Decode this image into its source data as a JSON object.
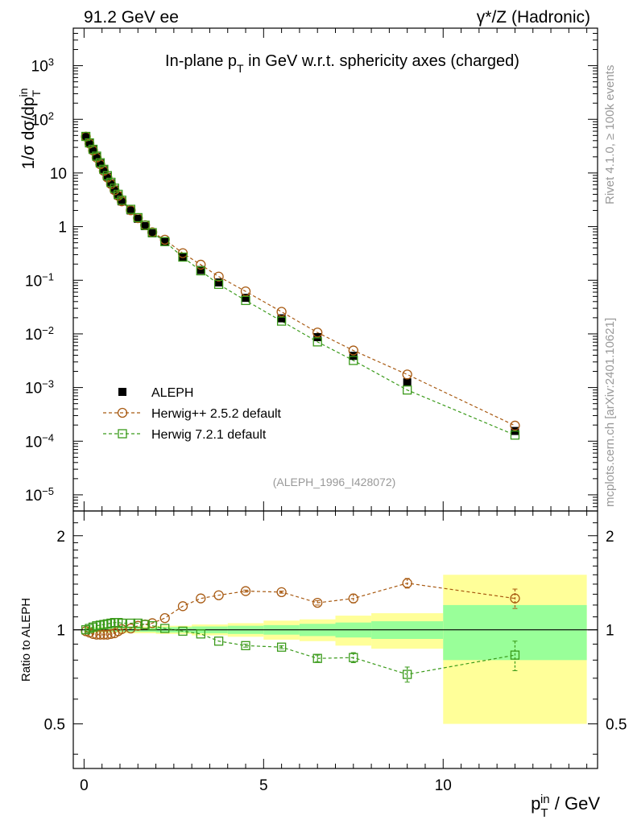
{
  "header": {
    "left": "91.2 GeV ee",
    "right": "γ*/Z (Hadronic)"
  },
  "side_labels": {
    "rivet": "Rivet 4.1.0, ≥ 100k events",
    "mcplots": "mcplots.cern.ch [arXiv:2401.10621]"
  },
  "colors": {
    "data": "#000000",
    "herwigpp": "#a85a12",
    "herwig7": "#3a9a1a",
    "band_inner": "#99ff99",
    "band_outer": "#ffff99"
  },
  "chart_data": [
    {
      "type": "scatter",
      "title": "In-plane p_T in GeV w.r.t. sphericity axes (charged)",
      "ylabel": "1/σ dσ/dp_T^in",
      "xlabel": "p_T^in / GeV",
      "watermark": "(ALEPH_1996_I428072)",
      "yscale": "log",
      "xlim": [
        -0.3,
        14.3
      ],
      "ylim": [
        5e-06,
        5000
      ],
      "x_ticks": [
        0,
        5,
        10
      ],
      "x_tick_labels": [
        "0",
        "5",
        "10"
      ],
      "y_ticks": [
        1e-05,
        0.0001,
        0.001,
        0.01,
        0.1,
        1,
        10,
        100,
        1000
      ],
      "y_tick_labels": [
        {
          "base": "10",
          "exp": "−5"
        },
        {
          "base": "10",
          "exp": "−4"
        },
        {
          "base": "10",
          "exp": "−3"
        },
        {
          "base": "10",
          "exp": "−2"
        },
        {
          "base": "10",
          "exp": "−1"
        },
        {
          "base": "1",
          "exp": ""
        },
        {
          "base": "10",
          "exp": ""
        },
        {
          "base": "10",
          "exp": "2"
        },
        {
          "base": "10",
          "exp": "3"
        }
      ],
      "legend_position": "center-left",
      "x": [
        0.05,
        0.15,
        0.25,
        0.35,
        0.45,
        0.55,
        0.65,
        0.75,
        0.85,
        0.95,
        1.05,
        1.3,
        1.5,
        1.7,
        1.9,
        2.25,
        2.75,
        3.25,
        3.75,
        4.5,
        5.5,
        6.5,
        7.5,
        9.0,
        12.0
      ],
      "series": [
        {
          "name": "ALEPH",
          "key": "data",
          "marker": "square-filled",
          "values": [
            48,
            36,
            27,
            20,
            15,
            11.3,
            8.5,
            6.4,
            4.9,
            3.8,
            2.95,
            2.0,
            1.4,
            1.02,
            0.75,
            0.52,
            0.27,
            0.155,
            0.091,
            0.047,
            0.0195,
            0.0087,
            0.0039,
            0.00125,
            0.000155
          ]
        },
        {
          "name": "Herwig++ 2.5.2 default",
          "key": "herwigpp",
          "marker": "circle-open",
          "values": [
            47.5,
            35.3,
            26.2,
            19.3,
            14.5,
            10.9,
            8.2,
            6.2,
            4.77,
            3.76,
            2.96,
            2.02,
            1.44,
            1.06,
            0.785,
            0.57,
            0.32,
            0.195,
            0.117,
            0.062,
            0.0258,
            0.0106,
            0.0049,
            0.00175,
            0.000195
          ]
        },
        {
          "name": "Herwig 7.2.1 default",
          "key": "herwig7",
          "marker": "square-open",
          "values": [
            48,
            36.4,
            27.6,
            20.6,
            15.5,
            11.7,
            8.9,
            6.7,
            5.2,
            4.0,
            3.1,
            2.1,
            1.47,
            1.06,
            0.77,
            0.525,
            0.27,
            0.15,
            0.084,
            0.042,
            0.0173,
            0.0071,
            0.0032,
            0.0009,
            0.00013
          ]
        }
      ]
    },
    {
      "type": "scatter",
      "ylabel": "Ratio to ALEPH",
      "xlabel": "p_T^in / GeV",
      "yscale": "log",
      "xlim": [
        -0.3,
        14.3
      ],
      "ylim": [
        0.36,
        2.4
      ],
      "y_ticks": [
        0.5,
        1,
        2
      ],
      "y_tick_labels": [
        "0.5",
        "1",
        "2"
      ],
      "reference_line": 1,
      "x": [
        0.05,
        0.15,
        0.25,
        0.35,
        0.45,
        0.55,
        0.65,
        0.75,
        0.85,
        0.95,
        1.05,
        1.3,
        1.5,
        1.7,
        1.9,
        2.25,
        2.75,
        3.25,
        3.75,
        4.5,
        5.5,
        6.5,
        7.5,
        9.0,
        12.0
      ],
      "bands": {
        "edges": [
          0,
          1,
          2,
          3,
          4,
          5,
          6,
          7,
          8,
          10,
          14
        ],
        "inner": [
          0.015,
          0.015,
          0.02,
          0.025,
          0.03,
          0.035,
          0.045,
          0.055,
          0.065,
          0.2
        ],
        "outer": [
          0.02,
          0.025,
          0.03,
          0.04,
          0.05,
          0.07,
          0.08,
          0.11,
          0.13,
          0.5
        ]
      },
      "series": [
        {
          "name": "Herwig++ 2.5.2 default",
          "key": "herwigpp",
          "marker": "circle-open",
          "values": [
            0.99,
            0.98,
            0.97,
            0.965,
            0.965,
            0.965,
            0.965,
            0.97,
            0.975,
            0.99,
            1.005,
            1.01,
            1.03,
            1.04,
            1.05,
            1.09,
            1.19,
            1.26,
            1.29,
            1.33,
            1.32,
            1.22,
            1.26,
            1.41,
            1.26
          ],
          "errors": [
            0,
            0,
            0,
            0,
            0,
            0,
            0,
            0,
            0,
            0,
            0,
            0,
            0,
            0,
            0,
            0,
            0,
            0,
            0,
            0.01,
            0.01,
            0.02,
            0.04,
            0.05,
            0.09
          ]
        },
        {
          "name": "Herwig 7.2.1 default",
          "key": "herwig7",
          "marker": "square-open",
          "values": [
            1.0,
            1.01,
            1.02,
            1.03,
            1.035,
            1.04,
            1.045,
            1.05,
            1.055,
            1.055,
            1.05,
            1.05,
            1.05,
            1.04,
            1.03,
            1.01,
            0.99,
            0.97,
            0.92,
            0.89,
            0.88,
            0.81,
            0.815,
            0.72,
            0.83
          ],
          "errors": [
            0,
            0,
            0,
            0,
            0,
            0,
            0,
            0,
            0,
            0,
            0,
            0,
            0,
            0,
            0,
            0,
            0,
            0,
            0,
            0.01,
            0.01,
            0.02,
            0.03,
            0.04,
            0.09
          ]
        }
      ]
    }
  ]
}
